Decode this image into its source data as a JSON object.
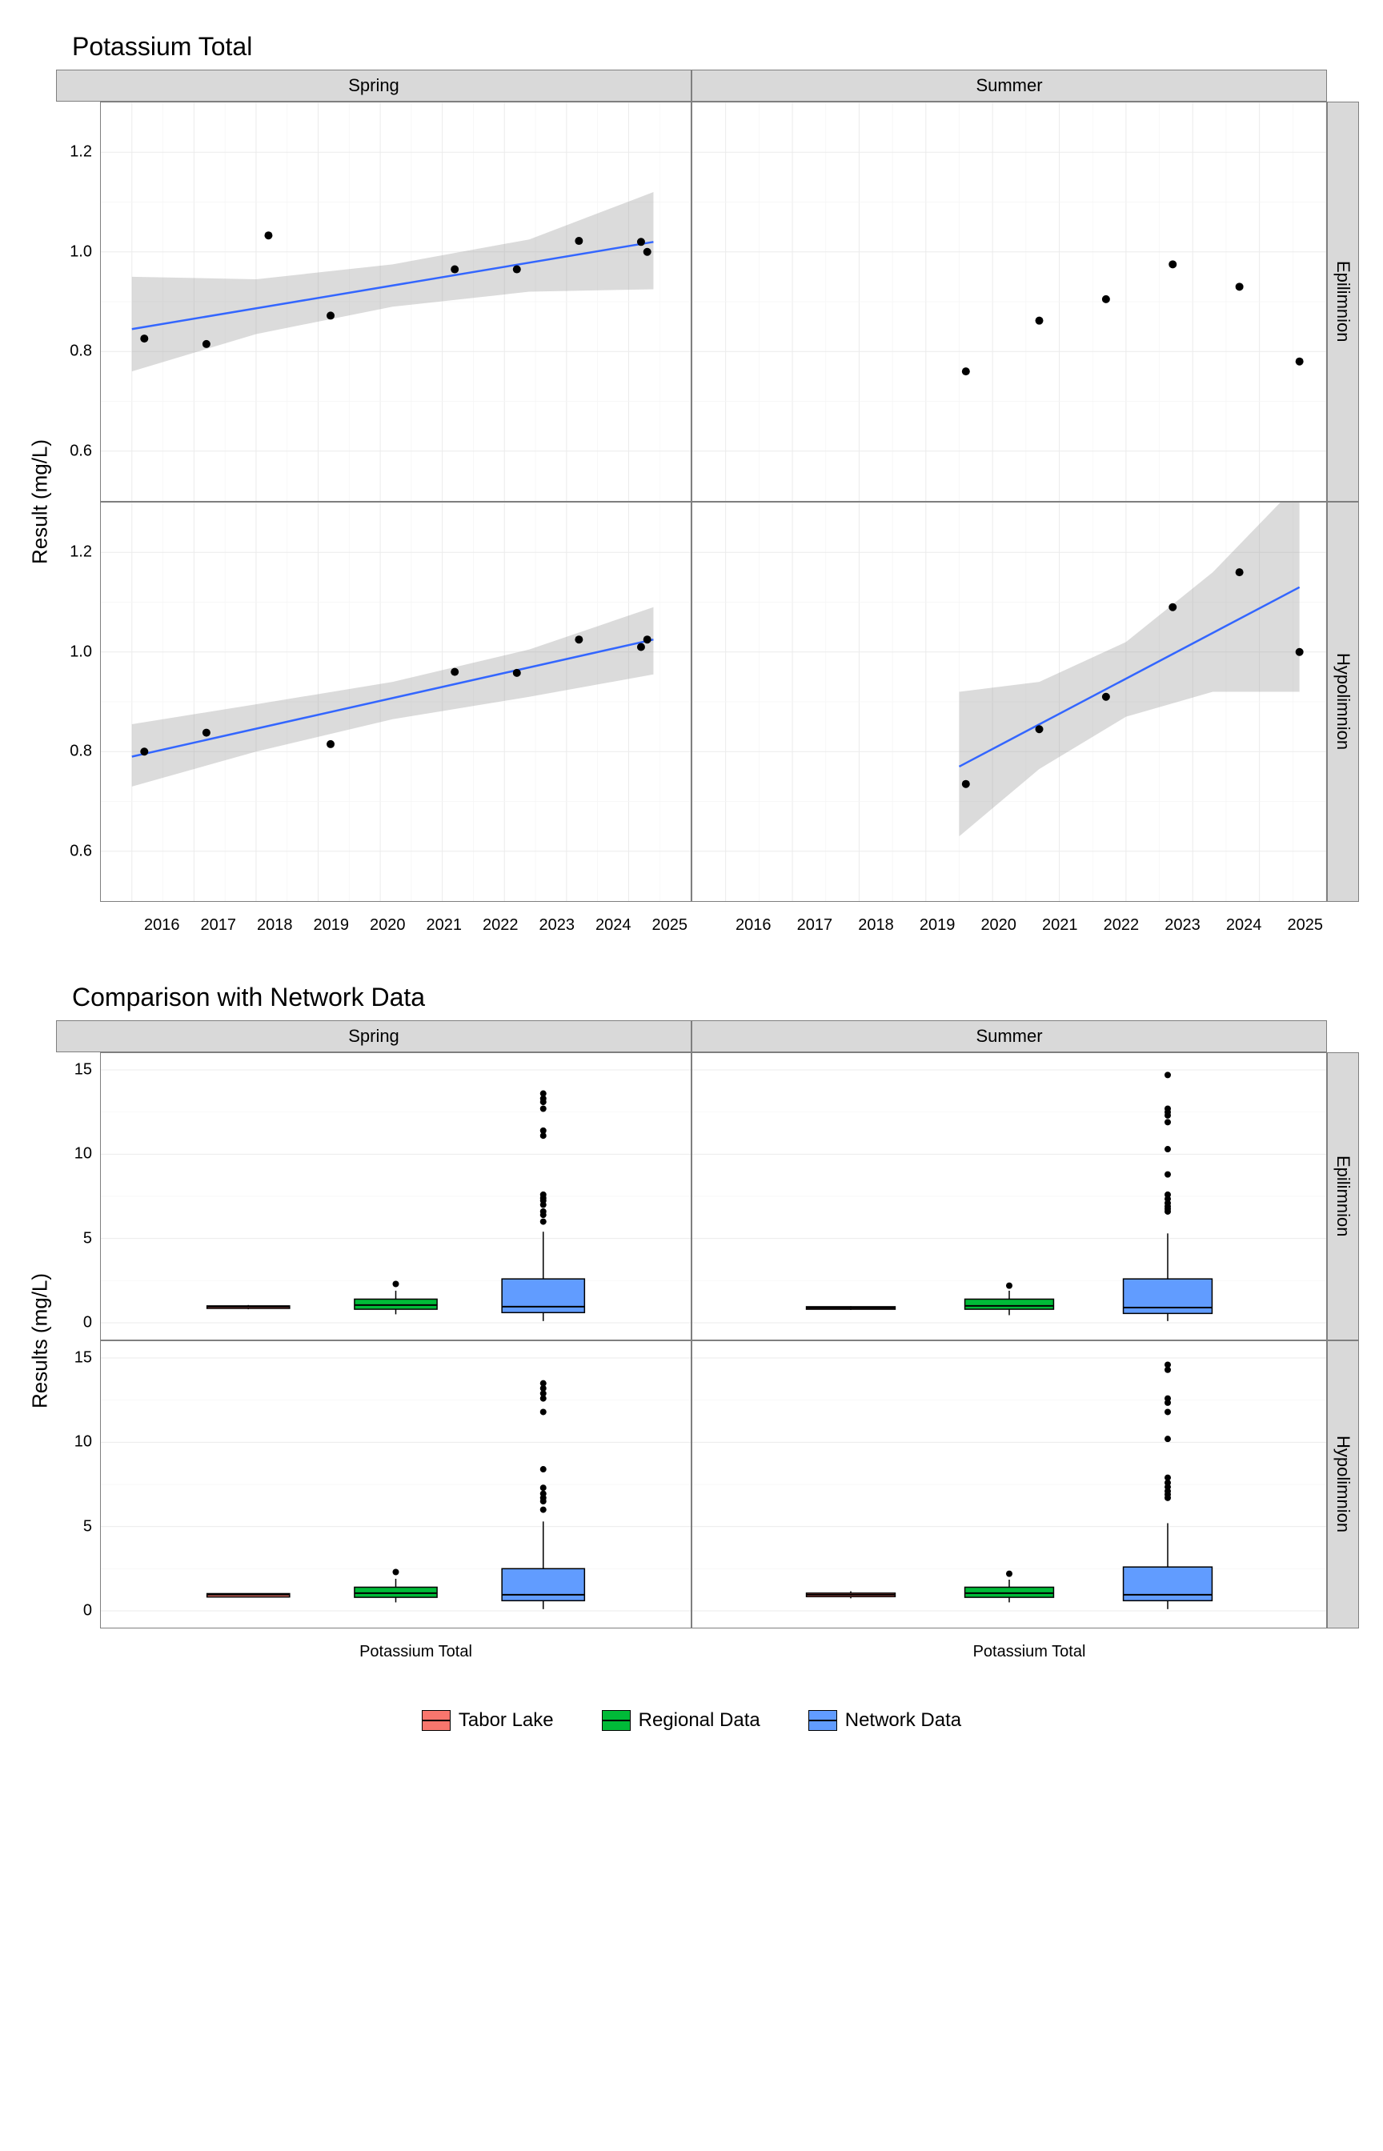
{
  "chart1": {
    "title": "Potassium Total",
    "y_label": "Result (mg/L)",
    "y_range": [
      0.5,
      1.3
    ],
    "y_ticks": [
      0.6,
      0.8,
      1.0,
      1.2
    ],
    "x_range": [
      2015.5,
      2025
    ],
    "x_ticks": [
      2016,
      2017,
      2018,
      2019,
      2020,
      2021,
      2022,
      2023,
      2024,
      2025
    ],
    "col_headers": [
      "Spring",
      "Summer"
    ],
    "row_headers": [
      "Epilimnion",
      "Hypolimnion"
    ],
    "point_color": "#000000",
    "point_radius": 5,
    "line_color": "#3366ff",
    "line_width": 2.5,
    "ribbon_color": "#999999",
    "ribbon_opacity": 0.35,
    "panels": {
      "spring_epi": {
        "points": [
          [
            2016.2,
            0.826
          ],
          [
            2017.2,
            0.815
          ],
          [
            2018.2,
            1.033
          ],
          [
            2019.2,
            0.872
          ],
          [
            2021.2,
            0.965
          ],
          [
            2022.2,
            0.965
          ],
          [
            2023.2,
            1.022
          ],
          [
            2024.2,
            1.02
          ],
          [
            2024.3,
            1.0
          ]
        ],
        "fit_line": [
          [
            2016.0,
            0.845
          ],
          [
            2024.4,
            1.02
          ]
        ],
        "ribbon": [
          [
            2016.0,
            0.76,
            0.95
          ],
          [
            2018.0,
            0.835,
            0.945
          ],
          [
            2020.2,
            0.89,
            0.975
          ],
          [
            2022.4,
            0.92,
            1.025
          ],
          [
            2024.4,
            0.925,
            1.12
          ]
        ]
      },
      "summer_epi": {
        "points": [
          [
            2019.6,
            0.76
          ],
          [
            2020.7,
            0.862
          ],
          [
            2021.7,
            0.905
          ],
          [
            2022.7,
            0.975
          ],
          [
            2023.7,
            0.93
          ],
          [
            2024.6,
            0.78
          ]
        ],
        "fit_line": null,
        "ribbon": null
      },
      "spring_hypo": {
        "points": [
          [
            2016.2,
            0.8
          ],
          [
            2017.2,
            0.838
          ],
          [
            2019.2,
            0.815
          ],
          [
            2021.2,
            0.96
          ],
          [
            2022.2,
            0.958
          ],
          [
            2023.2,
            1.025
          ],
          [
            2024.2,
            1.01
          ],
          [
            2024.3,
            1.025
          ]
        ],
        "fit_line": [
          [
            2016.0,
            0.79
          ],
          [
            2024.4,
            1.025
          ]
        ],
        "ribbon": [
          [
            2016.0,
            0.73,
            0.855
          ],
          [
            2018.0,
            0.8,
            0.895
          ],
          [
            2020.2,
            0.865,
            0.94
          ],
          [
            2022.4,
            0.91,
            1.005
          ],
          [
            2024.4,
            0.955,
            1.09
          ]
        ]
      },
      "summer_hypo": {
        "points": [
          [
            2019.6,
            0.735
          ],
          [
            2020.7,
            0.845
          ],
          [
            2021.7,
            0.91
          ],
          [
            2022.7,
            1.09
          ],
          [
            2023.7,
            1.16
          ],
          [
            2024.6,
            1.0
          ]
        ],
        "fit_line": [
          [
            2019.5,
            0.77
          ],
          [
            2024.6,
            1.13
          ]
        ],
        "ribbon": [
          [
            2019.5,
            0.63,
            0.92
          ],
          [
            2020.7,
            0.765,
            0.94
          ],
          [
            2022.0,
            0.87,
            1.02
          ],
          [
            2023.3,
            0.92,
            1.16
          ],
          [
            2024.6,
            0.92,
            1.34
          ]
        ]
      }
    }
  },
  "chart2": {
    "title": "Comparison with Network Data",
    "y_label": "Results (mg/L)",
    "y_range": [
      -1,
      16
    ],
    "y_ticks": [
      0,
      5,
      10,
      15
    ],
    "x_category": "Potassium Total",
    "col_headers": [
      "Spring",
      "Summer"
    ],
    "row_headers": [
      "Epilimnion",
      "Hypolimnion"
    ],
    "box_colors": {
      "tabor": "#f8766d",
      "regional": "#00ba38",
      "network": "#619cff"
    },
    "box_stroke": "#000000",
    "whisker_stroke": "#000000",
    "outlier_color": "#000000",
    "outlier_radius": 4,
    "panels": {
      "spring_epi": {
        "boxes": [
          {
            "key": "tabor",
            "x": 0.25,
            "q1": 0.85,
            "med": 0.95,
            "q3": 1.0,
            "lw": 0.8,
            "uw": 1.05,
            "outliers": []
          },
          {
            "key": "regional",
            "x": 0.5,
            "q1": 0.8,
            "med": 1.05,
            "q3": 1.4,
            "lw": 0.5,
            "uw": 1.9,
            "outliers": [
              2.3
            ]
          },
          {
            "key": "network",
            "x": 0.75,
            "q1": 0.6,
            "med": 0.95,
            "q3": 2.6,
            "lw": 0.1,
            "uw": 5.4,
            "outliers": [
              6.0,
              6.4,
              6.6,
              7.0,
              7.25,
              7.4,
              7.6,
              11.1,
              11.4,
              12.7,
              13.1,
              13.3,
              13.6
            ]
          }
        ]
      },
      "summer_epi": {
        "boxes": [
          {
            "key": "tabor",
            "x": 0.25,
            "q1": 0.8,
            "med": 0.88,
            "q3": 0.95,
            "lw": 0.76,
            "uw": 0.98,
            "outliers": []
          },
          {
            "key": "regional",
            "x": 0.5,
            "q1": 0.8,
            "med": 1.0,
            "q3": 1.4,
            "lw": 0.45,
            "uw": 1.9,
            "outliers": [
              2.2
            ]
          },
          {
            "key": "network",
            "x": 0.75,
            "q1": 0.55,
            "med": 0.9,
            "q3": 2.6,
            "lw": 0.1,
            "uw": 5.3,
            "outliers": [
              6.6,
              6.75,
              6.9,
              7.1,
              7.35,
              7.6,
              8.8,
              10.3,
              11.9,
              12.3,
              12.5,
              12.7,
              14.7
            ]
          }
        ]
      },
      "spring_hypo": {
        "boxes": [
          {
            "key": "tabor",
            "x": 0.25,
            "q1": 0.82,
            "med": 0.96,
            "q3": 1.02,
            "lw": 0.8,
            "uw": 1.03,
            "outliers": []
          },
          {
            "key": "regional",
            "x": 0.5,
            "q1": 0.8,
            "med": 1.05,
            "q3": 1.4,
            "lw": 0.5,
            "uw": 1.9,
            "outliers": [
              2.3
            ]
          },
          {
            "key": "network",
            "x": 0.75,
            "q1": 0.6,
            "med": 0.95,
            "q3": 2.5,
            "lw": 0.1,
            "uw": 5.3,
            "outliers": [
              6.0,
              6.5,
              6.7,
              6.95,
              7.3,
              8.4,
              11.8,
              12.6,
              12.9,
              13.2,
              13.5
            ]
          }
        ]
      },
      "summer_hypo": {
        "boxes": [
          {
            "key": "tabor",
            "x": 0.25,
            "q1": 0.84,
            "med": 0.95,
            "q3": 1.05,
            "lw": 0.74,
            "uw": 1.16,
            "outliers": []
          },
          {
            "key": "regional",
            "x": 0.5,
            "q1": 0.8,
            "med": 1.05,
            "q3": 1.4,
            "lw": 0.5,
            "uw": 1.85,
            "outliers": [
              2.2
            ]
          },
          {
            "key": "network",
            "x": 0.75,
            "q1": 0.6,
            "med": 0.95,
            "q3": 2.6,
            "lw": 0.1,
            "uw": 5.2,
            "outliers": [
              6.7,
              6.9,
              7.1,
              7.35,
              7.6,
              7.9,
              10.2,
              11.8,
              12.35,
              12.6,
              14.3,
              14.6
            ]
          }
        ]
      }
    }
  },
  "legend": {
    "items": [
      {
        "label": "Tabor Lake",
        "color": "#f8766d"
      },
      {
        "label": "Regional Data",
        "color": "#00ba38"
      },
      {
        "label": "Network Data",
        "color": "#619cff"
      }
    ]
  }
}
